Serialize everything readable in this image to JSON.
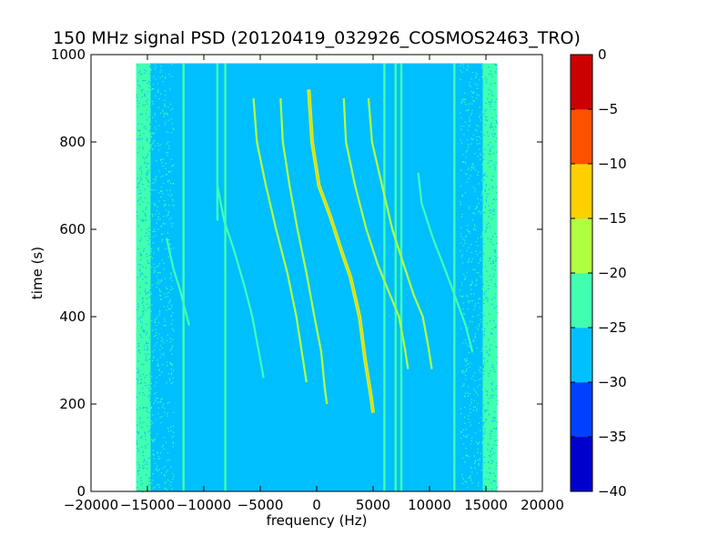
{
  "chart_data": {
    "type": "heatmap",
    "title": "150 MHz signal PSD (20120419_032926_COSMOS2463_TRO)",
    "xlabel": "frequency (Hz)",
    "ylabel": "time (s)",
    "xlim": [
      -20000,
      20000
    ],
    "ylim": [
      0,
      1000
    ],
    "xticks": [
      -20000,
      -15000,
      -10000,
      -5000,
      0,
      5000,
      10000,
      15000,
      20000
    ],
    "xtick_labels": [
      "−20000",
      "−15000",
      "−10000",
      "−5000",
      "0",
      "5000",
      "10000",
      "15000",
      "20000"
    ],
    "yticks": [
      0,
      200,
      400,
      600,
      800,
      1000
    ],
    "ytick_labels": [
      "0",
      "200",
      "400",
      "600",
      "800",
      "1000"
    ],
    "data_extent": {
      "x": [
        -16000,
        16000
      ],
      "y": [
        0,
        980
      ]
    },
    "background_level": -27.5,
    "edge_level": -22.5,
    "colorbar": {
      "levels": [
        -40,
        -35,
        -30,
        -25,
        -20,
        -15,
        -10,
        -5,
        0
      ],
      "tick_labels": [
        "−40",
        "−35",
        "−30",
        "−25",
        "−20",
        "−15",
        "−10",
        "−5",
        "0"
      ],
      "colors": [
        "#0000cc",
        "#0040ff",
        "#00bfff",
        "#40ffb0",
        "#b0ff40",
        "#ffd000",
        "#ff5000",
        "#cc0000"
      ]
    },
    "vertical_lines": [
      {
        "x": -11800,
        "y0": 0,
        "y1": 980,
        "level": -22.5
      },
      {
        "x": -8100,
        "y0": 0,
        "y1": 980,
        "level": -22.5
      },
      {
        "x": -8800,
        "y0": 620,
        "y1": 980,
        "level": -22.5
      },
      {
        "x": 6000,
        "y0": 0,
        "y1": 980,
        "level": -22.5
      },
      {
        "x": 7000,
        "y0": 0,
        "y1": 980,
        "level": -22.5
      },
      {
        "x": 7500,
        "y0": 0,
        "y1": 980,
        "level": -22.5
      },
      {
        "x": 12200,
        "y0": 0,
        "y1": 980,
        "level": -22.5
      }
    ],
    "curves": [
      {
        "name": "",
        "level": -12.5,
        "points": [
          [
            -700,
            920
          ],
          [
            -400,
            800
          ],
          [
            200,
            700
          ],
          [
            1200,
            630
          ],
          [
            2200,
            550
          ],
          [
            3000,
            490
          ],
          [
            3800,
            400
          ],
          [
            4300,
            300
          ],
          [
            4800,
            220
          ],
          [
            5000,
            180
          ]
        ]
      },
      {
        "name": "",
        "level": -17.5,
        "points": [
          [
            -3200,
            900
          ],
          [
            -3000,
            800
          ],
          [
            -2400,
            700
          ],
          [
            -1700,
            600
          ],
          [
            -900,
            500
          ],
          [
            -200,
            400
          ],
          [
            400,
            320
          ],
          [
            700,
            240
          ],
          [
            900,
            200
          ]
        ]
      },
      {
        "name": "",
        "level": -17.5,
        "points": [
          [
            -5600,
            900
          ],
          [
            -5300,
            800
          ],
          [
            -4500,
            700
          ],
          [
            -3600,
            600
          ],
          [
            -2600,
            500
          ],
          [
            -1800,
            400
          ],
          [
            -1200,
            300
          ],
          [
            -900,
            250
          ]
        ]
      },
      {
        "name": "",
        "level": -22.5,
        "points": [
          [
            -8800,
            700
          ],
          [
            -8200,
            620
          ],
          [
            -7300,
            550
          ],
          [
            -6400,
            470
          ],
          [
            -5700,
            400
          ],
          [
            -5200,
            330
          ],
          [
            -4700,
            260
          ]
        ]
      },
      {
        "name": "",
        "level": -17.5,
        "points": [
          [
            2400,
            900
          ],
          [
            2600,
            800
          ],
          [
            3400,
            700
          ],
          [
            4400,
            600
          ],
          [
            5400,
            520
          ],
          [
            6500,
            450
          ],
          [
            7300,
            400
          ],
          [
            7800,
            330
          ],
          [
            8100,
            280
          ]
        ]
      },
      {
        "name": "",
        "level": -17.5,
        "points": [
          [
            4600,
            900
          ],
          [
            4900,
            800
          ],
          [
            5800,
            700
          ],
          [
            6700,
            600
          ],
          [
            7700,
            520
          ],
          [
            8600,
            450
          ],
          [
            9400,
            400
          ],
          [
            9900,
            330
          ],
          [
            10200,
            280
          ]
        ]
      },
      {
        "name": "",
        "level": -22.5,
        "points": [
          [
            9000,
            730
          ],
          [
            9300,
            660
          ],
          [
            10300,
            580
          ],
          [
            11500,
            500
          ],
          [
            12500,
            430
          ],
          [
            13200,
            380
          ],
          [
            13800,
            320
          ]
        ]
      },
      {
        "name": "",
        "level": -22.5,
        "points": [
          [
            -13300,
            580
          ],
          [
            -12700,
            510
          ],
          [
            -12100,
            460
          ],
          [
            -11600,
            410
          ],
          [
            -11300,
            380
          ]
        ]
      }
    ]
  }
}
